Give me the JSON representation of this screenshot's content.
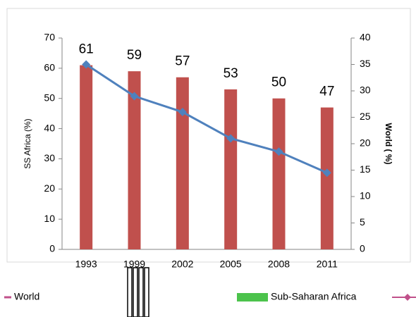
{
  "chart_data": {
    "type": "bar_line",
    "categories": [
      "1993",
      "1999",
      "2002",
      "2005",
      "2008",
      "2011"
    ],
    "series": [
      {
        "name": "Sub-Saharan Africa",
        "type": "bar",
        "color": "#c0504d",
        "legend_color": "#4cc34c",
        "values": [
          61,
          59,
          57,
          53,
          50,
          47
        ]
      },
      {
        "name": "World",
        "type": "line",
        "axis": "y2",
        "color": "#4f81bd",
        "legend_color": "#c0508a",
        "values": [
          35,
          29,
          26,
          21,
          18.5,
          14.5
        ]
      }
    ],
    "ylabel": "SS Africa (%)",
    "y2label": "World ( %)",
    "ylim": [
      0,
      70
    ],
    "yticks": [
      0,
      10,
      20,
      30,
      40,
      50,
      60,
      70
    ],
    "y2lim": [
      0,
      40
    ],
    "y2ticks": [
      0,
      5,
      10,
      15,
      20,
      25,
      30,
      35,
      40
    ]
  }
}
